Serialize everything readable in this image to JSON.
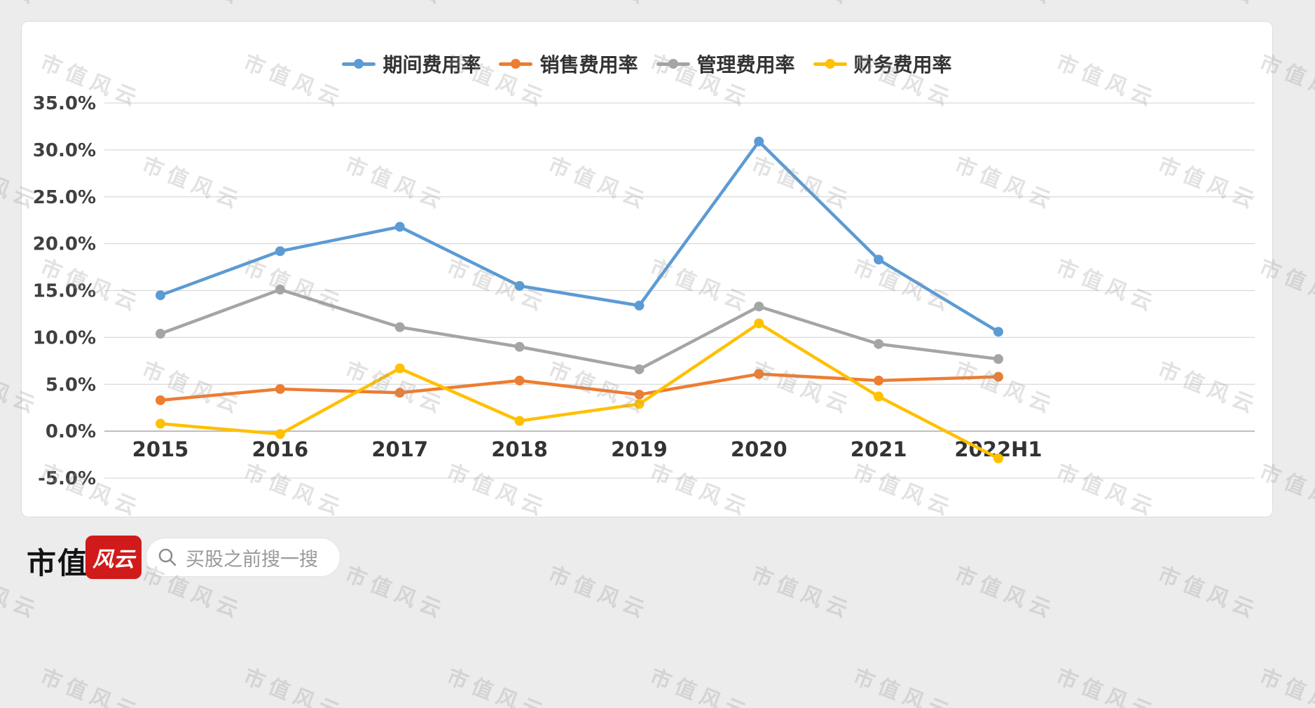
{
  "watermark": "市值风云",
  "brand": {
    "name_left": "市值",
    "seal_text": "风云"
  },
  "search": {
    "placeholder": "买股之前搜一搜"
  },
  "chart_data": {
    "type": "line",
    "title": "",
    "categories": [
      "2015",
      "2016",
      "2017",
      "2018",
      "2019",
      "2020",
      "2021",
      "2022H1"
    ],
    "series": [
      {
        "name": "期间费用率",
        "color": "#5B9BD5",
        "values": [
          14.5,
          19.2,
          21.8,
          15.5,
          13.4,
          30.9,
          18.3,
          10.6
        ]
      },
      {
        "name": "销售费用率",
        "color": "#ED7D31",
        "values": [
          3.3,
          4.5,
          4.1,
          5.4,
          3.9,
          6.1,
          5.4,
          5.8
        ]
      },
      {
        "name": "管理费用率",
        "color": "#A5A5A5",
        "values": [
          10.4,
          15.1,
          11.1,
          9.0,
          6.6,
          13.3,
          9.3,
          7.7
        ]
      },
      {
        "name": "财务费用率",
        "color": "#FFC000",
        "values": [
          0.8,
          -0.3,
          6.7,
          1.1,
          2.9,
          11.5,
          3.7,
          -2.9
        ]
      }
    ],
    "y_axis": {
      "min": -5,
      "max": 35,
      "step": 5,
      "unit": "%"
    },
    "y_tick_labels": [
      "35.0%",
      "30.0%",
      "25.0%",
      "20.0%",
      "15.0%",
      "10.0%",
      "5.0%",
      "0.0%",
      "-5.0%"
    ],
    "grid": true,
    "legend_position": "top"
  }
}
